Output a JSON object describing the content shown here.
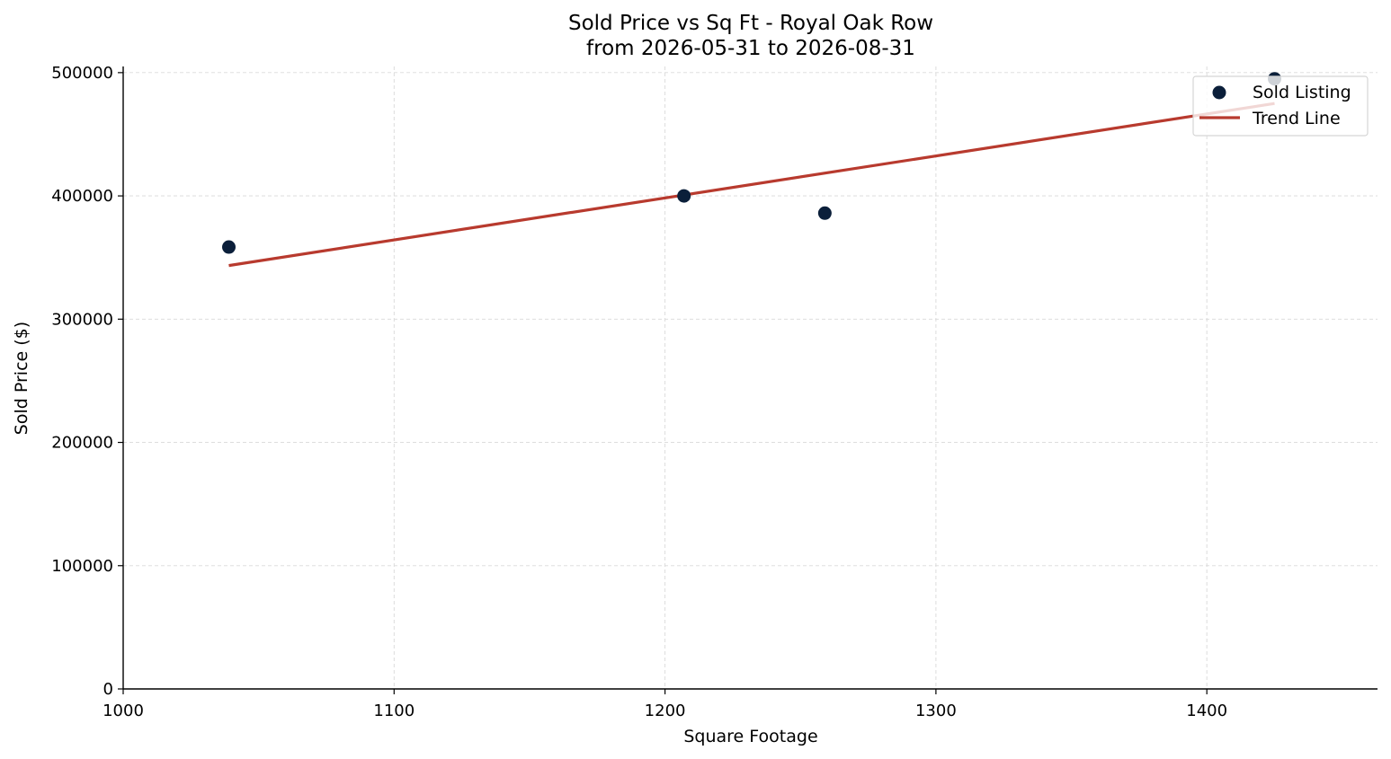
{
  "chart_data": {
    "type": "scatter",
    "title": "Sold Price vs Sq Ft - Royal Oak Row",
    "subtitle": "from 2026-05-31 to 2026-08-31",
    "xlabel": "Square Footage",
    "ylabel": "Sold Price ($)",
    "xlim": [
      1000,
      1463
    ],
    "ylim": [
      0,
      505000
    ],
    "x_ticks": [
      1000,
      1100,
      1200,
      1300,
      1400
    ],
    "y_ticks": [
      0,
      100000,
      200000,
      300000,
      400000,
      500000
    ],
    "grid": true,
    "legend_position": "top-right",
    "series": [
      {
        "name": "Sold Listing",
        "kind": "scatter",
        "color": "#0b1f3a",
        "points": [
          {
            "x": 1039,
            "y": 358500
          },
          {
            "x": 1207,
            "y": 400000
          },
          {
            "x": 1259,
            "y": 386000
          },
          {
            "x": 1425,
            "y": 495000
          }
        ]
      },
      {
        "name": "Trend Line",
        "kind": "line",
        "color": "#b83a2e",
        "points": [
          {
            "x": 1039,
            "y": 343500
          },
          {
            "x": 1425,
            "y": 475000
          }
        ]
      }
    ]
  }
}
